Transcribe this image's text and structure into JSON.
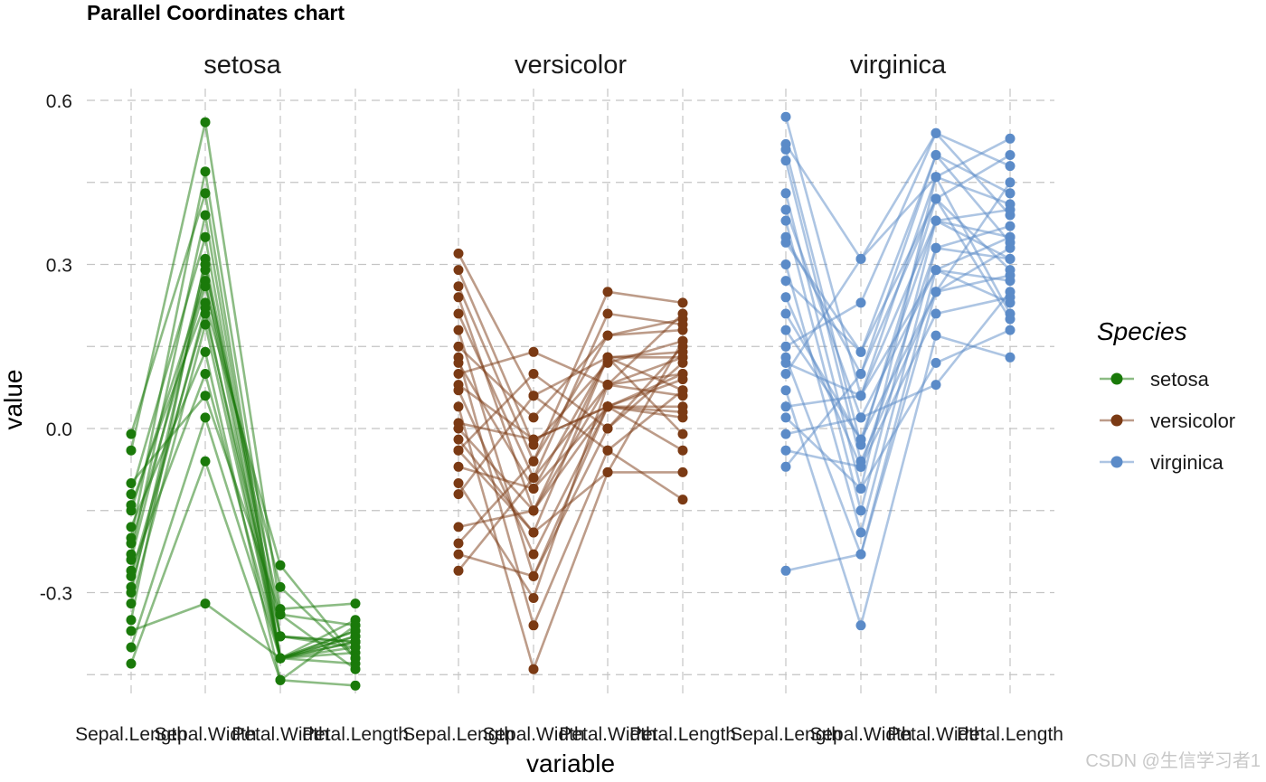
{
  "watermark": "CSDN @生信学习者1",
  "chart_data": {
    "type": "line",
    "title": "Parallel Coordinates chart",
    "xlabel": "variable",
    "ylabel": "value",
    "ylim": [
      -0.45,
      0.6
    ],
    "yticks": [
      0.6,
      0.3,
      0.0,
      -0.3
    ],
    "ytick_labels": [
      "0.6",
      "0.3",
      "0.0",
      "-0.3"
    ],
    "variables": [
      "Sepal.Length",
      "Sepal.Width",
      "Petal.Width",
      "Petal.Length"
    ],
    "legend": {
      "title": "Species",
      "position": "right"
    },
    "panels": [
      {
        "name": "setosa",
        "color": "#1a7a0a",
        "lines": [
          [
            -0.23,
            0.39,
            -0.42,
            -0.39
          ],
          [
            -0.26,
            0.1,
            -0.42,
            -0.41
          ],
          [
            -0.29,
            0.22,
            -0.42,
            -0.43
          ],
          [
            -0.32,
            0.19,
            -0.42,
            -0.37
          ],
          [
            -0.2,
            0.47,
            -0.38,
            -0.39
          ],
          [
            -0.04,
            0.56,
            -0.33,
            -0.32
          ],
          [
            -0.35,
            0.31,
            -0.38,
            -0.4
          ],
          [
            -0.15,
            0.27,
            -0.42,
            -0.38
          ],
          [
            -0.4,
            0.02,
            -0.42,
            -0.39
          ],
          [
            -0.18,
            0.14,
            -0.46,
            -0.36
          ],
          [
            -0.01,
            0.43,
            -0.42,
            -0.35
          ],
          [
            -0.12,
            0.35,
            -0.42,
            -0.37
          ],
          [
            -0.37,
            -0.32,
            -0.42,
            -0.4
          ],
          [
            -0.43,
            -0.06,
            -0.46,
            -0.47
          ],
          [
            -0.1,
            0.06,
            -0.34,
            -0.44
          ],
          [
            -0.21,
            0.26,
            -0.29,
            -0.42
          ],
          [
            -0.27,
            0.21,
            -0.38,
            -0.39
          ],
          [
            -0.14,
            0.23,
            -0.25,
            -0.42
          ],
          [
            -0.3,
            0.29,
            -0.34,
            -0.36
          ],
          [
            -0.24,
            0.3,
            -0.42,
            -0.38
          ]
        ]
      },
      {
        "name": "versicolor",
        "color": "#7b3a14",
        "lines": [
          [
            0.32,
            0.06,
            0.13,
            0.13
          ],
          [
            0.29,
            -0.03,
            0.12,
            0.16
          ],
          [
            0.26,
            -0.06,
            0.17,
            0.2
          ],
          [
            0.24,
            -0.15,
            0.13,
            0.14
          ],
          [
            0.21,
            -0.09,
            0.08,
            0.21
          ],
          [
            0.18,
            -0.27,
            0.0,
            0.12
          ],
          [
            0.15,
            0.02,
            0.17,
            0.18
          ],
          [
            0.13,
            -0.36,
            -0.04,
            -0.13
          ],
          [
            0.1,
            0.14,
            0.08,
            0.06
          ],
          [
            0.07,
            -0.23,
            0.04,
            0.09
          ],
          [
            0.04,
            -0.44,
            -0.08,
            -0.08
          ],
          [
            0.01,
            -0.02,
            0.04,
            0.02
          ],
          [
            -0.02,
            -0.19,
            0.13,
            -0.01
          ],
          [
            -0.04,
            0.1,
            0.0,
            0.15
          ],
          [
            -0.07,
            -0.11,
            0.04,
            0.03
          ],
          [
            -0.1,
            -0.31,
            0.08,
            0.1
          ],
          [
            -0.12,
            0.06,
            -0.04,
            0.07
          ],
          [
            -0.18,
            -0.15,
            0.04,
            0.04
          ],
          [
            -0.21,
            -0.06,
            0.25,
            0.23
          ],
          [
            -0.23,
            -0.27,
            0.04,
            0.1
          ],
          [
            -0.26,
            -0.09,
            0.21,
            0.19
          ],
          [
            0.08,
            -0.02,
            0.04,
            -0.04
          ],
          [
            0.0,
            -0.15,
            0.08,
            0.13
          ],
          [
            -0.04,
            -0.19,
            -0.08,
            0.16
          ],
          [
            0.12,
            -0.11,
            0.13,
            0.07
          ]
        ]
      },
      {
        "name": "virginica",
        "color": "#5b8bc8",
        "lines": [
          [
            0.57,
            0.06,
            0.46,
            0.53
          ],
          [
            0.52,
            0.31,
            0.54,
            0.48
          ],
          [
            0.51,
            -0.03,
            0.42,
            0.5
          ],
          [
            0.49,
            -0.06,
            0.25,
            0.45
          ],
          [
            0.43,
            -0.11,
            0.46,
            0.41
          ],
          [
            0.4,
            0.02,
            0.29,
            0.35
          ],
          [
            0.38,
            -0.15,
            0.38,
            0.31
          ],
          [
            0.35,
            0.1,
            0.5,
            0.43
          ],
          [
            0.3,
            -0.19,
            0.33,
            0.37
          ],
          [
            0.27,
            0.14,
            0.42,
            0.29
          ],
          [
            0.24,
            -0.07,
            0.21,
            0.24
          ],
          [
            0.18,
            -0.02,
            0.25,
            0.33
          ],
          [
            0.15,
            0.23,
            0.54,
            0.39
          ],
          [
            0.13,
            -0.23,
            0.29,
            0.27
          ],
          [
            0.1,
            0.31,
            0.46,
            0.21
          ],
          [
            0.07,
            -0.36,
            0.17,
            0.13
          ],
          [
            0.04,
            0.06,
            0.38,
            0.35
          ],
          [
            0.02,
            -0.11,
            0.12,
            0.18
          ],
          [
            -0.01,
            0.02,
            0.08,
            0.25
          ],
          [
            -0.04,
            -0.07,
            0.33,
            0.31
          ],
          [
            -0.07,
            0.1,
            0.42,
            0.2
          ],
          [
            -0.26,
            -0.23,
            0.25,
            0.28
          ],
          [
            0.12,
            0.06,
            0.29,
            0.23
          ],
          [
            0.21,
            -0.02,
            0.38,
            0.4
          ],
          [
            0.34,
            0.14,
            0.5,
            0.34
          ]
        ]
      }
    ]
  }
}
